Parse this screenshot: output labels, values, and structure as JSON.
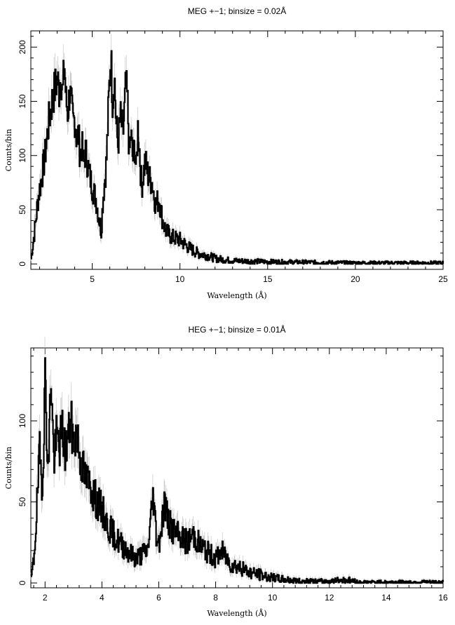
{
  "chart_data": [
    {
      "type": "line",
      "title": "MEG +−1; binsize = 0.02Å",
      "xlabel": "Wavelength (Å)",
      "ylabel": "Counts/bin",
      "xlim": [
        1.5,
        25
      ],
      "ylim": [
        -5,
        215
      ],
      "xticks": [
        5,
        10,
        15,
        20,
        25
      ],
      "yticks": [
        0,
        50,
        100,
        150,
        200
      ],
      "series": [
        {
          "x": [
            1.5,
            1.7,
            1.9,
            2.1,
            2.3,
            2.5,
            2.7,
            2.9,
            3.0,
            3.1,
            3.2,
            3.3,
            3.4,
            3.5,
            3.6,
            3.7,
            3.8,
            3.9,
            4.0,
            4.1,
            4.2,
            4.3,
            4.4,
            4.5,
            4.6,
            4.8,
            5.0,
            5.2,
            5.4,
            5.5,
            5.6,
            5.8,
            5.95,
            6.05,
            6.15,
            6.25,
            6.35,
            6.45,
            6.6,
            6.75,
            6.9,
            7.0,
            7.1,
            7.2,
            7.3,
            7.4,
            7.5,
            7.6,
            7.8,
            8.0,
            8.2,
            8.4,
            8.6,
            8.8,
            9.0,
            9.2,
            9.5,
            10.0,
            10.5,
            11.0,
            11.5,
            12.0,
            13.0,
            15.0,
            20.0,
            25.0
          ],
          "y": [
            5,
            30,
            60,
            80,
            100,
            130,
            150,
            165,
            170,
            160,
            175,
            155,
            185,
            150,
            140,
            160,
            145,
            130,
            135,
            115,
            120,
            100,
            110,
            90,
            105,
            85,
            70,
            60,
            40,
            30,
            60,
            95,
            160,
            195,
            150,
            175,
            130,
            110,
            135,
            120,
            165,
            150,
            100,
            120,
            95,
            110,
            85,
            130,
            70,
            95,
            80,
            75,
            55,
            60,
            40,
            30,
            25,
            22,
            15,
            10,
            8,
            5,
            3,
            2,
            1,
            1
          ]
        }
      ]
    },
    {
      "type": "line",
      "title": "HEG +−1; binsize = 0.01Å",
      "xlabel": "Wavelength (Å)",
      "ylabel": "Counts/bin",
      "xlim": [
        1.5,
        16
      ],
      "ylim": [
        -3,
        145
      ],
      "xticks": [
        2,
        4,
        6,
        8,
        10,
        12,
        14,
        16
      ],
      "yticks": [
        0,
        50,
        100
      ],
      "series": [
        {
          "x": [
            1.5,
            1.6,
            1.7,
            1.8,
            1.9,
            2.0,
            2.1,
            2.2,
            2.3,
            2.4,
            2.5,
            2.6,
            2.7,
            2.8,
            2.9,
            3.0,
            3.1,
            3.2,
            3.4,
            3.6,
            3.8,
            4.0,
            4.2,
            4.4,
            4.6,
            4.8,
            5.0,
            5.2,
            5.4,
            5.6,
            5.8,
            5.9,
            6.0,
            6.2,
            6.3,
            6.4,
            6.6,
            6.8,
            7.0,
            7.2,
            7.5,
            7.8,
            8.0,
            8.2,
            8.5,
            8.8,
            9.0,
            9.3,
            9.6,
            10.0,
            10.5,
            11.0,
            12.0,
            12.6,
            13.0,
            14.0,
            15.0,
            16.0
          ],
          "y": [
            2,
            15,
            45,
            80,
            60,
            130,
            65,
            130,
            75,
            90,
            85,
            95,
            80,
            90,
            100,
            85,
            95,
            80,
            65,
            60,
            50,
            45,
            35,
            30,
            25,
            22,
            18,
            15,
            18,
            20,
            55,
            30,
            25,
            50,
            40,
            35,
            30,
            28,
            25,
            30,
            22,
            18,
            15,
            20,
            12,
            10,
            8,
            6,
            5,
            3,
            2,
            1,
            1,
            2,
            0.5,
            0.5,
            0.5,
            0.5
          ]
        }
      ]
    }
  ]
}
